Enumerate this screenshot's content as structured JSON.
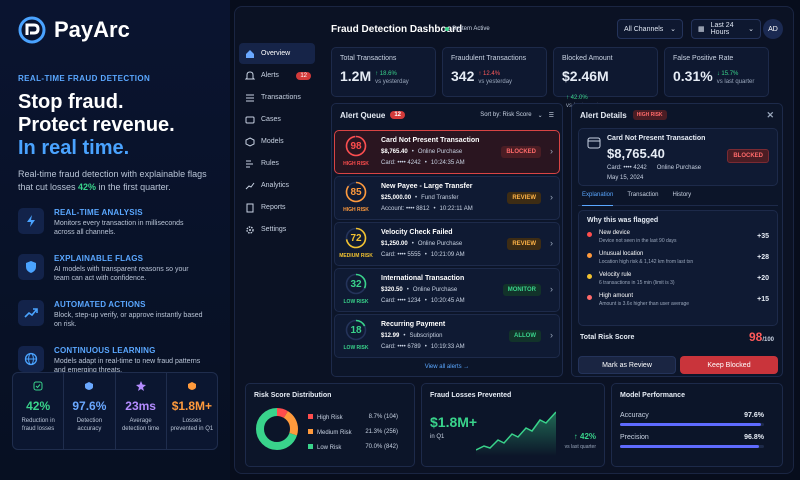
{
  "brand": {
    "name": "PayArc"
  },
  "hero": {
    "eyebrow": "REAL-TIME FRAUD DETECTION",
    "line1": "Stop fraud.",
    "line2": "Protect revenue.",
    "line3": "In real time.",
    "sub_pre": "Real-time fraud detection with explainable flags that cut losses ",
    "sub_pct": "42%",
    "sub_post": " in the first quarter."
  },
  "features": [
    {
      "title": "REAL-TIME ANALYSIS",
      "desc": "Monitors every transaction in milliseconds across all channels.",
      "icon": "bolt-icon"
    },
    {
      "title": "EXPLAINABLE FLAGS",
      "desc": "AI models with transparent reasons so your team can act with confidence.",
      "icon": "shield-icon"
    },
    {
      "title": "AUTOMATED ACTIONS",
      "desc": "Block, step-up verify, or approve instantly based on risk.",
      "icon": "trend-icon"
    },
    {
      "title": "CONTINUOUS LEARNING",
      "desc": "Models adapt in real-time to new fraud patterns and emerging threats.",
      "icon": "globe-icon"
    }
  ],
  "stats": [
    {
      "value": "42%",
      "label": "Reduction in fraud losses",
      "color": "#39d38b"
    },
    {
      "value": "97.6%",
      "label": "Detection accuracy",
      "color": "#6aa8ff"
    },
    {
      "value": "23ms",
      "label": "Average detection time",
      "color": "#b48cff"
    },
    {
      "value": "$1.8M+",
      "label": "Losses prevented in Q1",
      "color": "#ff9a3c"
    }
  ],
  "nav": [
    {
      "label": "Overview",
      "icon": "home-icon",
      "active": true
    },
    {
      "label": "Alerts",
      "icon": "bell-icon",
      "badge": "12"
    },
    {
      "label": "Transactions",
      "icon": "list-icon"
    },
    {
      "label": "Cases",
      "icon": "folder-icon"
    },
    {
      "label": "Models",
      "icon": "cube-icon"
    },
    {
      "label": "Rules",
      "icon": "rules-icon"
    },
    {
      "label": "Analytics",
      "icon": "chart-icon"
    },
    {
      "label": "Reports",
      "icon": "doc-icon"
    },
    {
      "label": "Settings",
      "icon": "gear-icon"
    }
  ],
  "header": {
    "title": "Fraud Detection Dashboard",
    "status": "System Active",
    "channels": "All Channels",
    "range": "Last 24 Hours",
    "avatar": "AD"
  },
  "kpis": [
    {
      "label": "Total Transactions",
      "value": "1.2M",
      "delta": "↑ 18.6%",
      "dir": "up",
      "vs": "vs yesterday"
    },
    {
      "label": "Fraudulent Transactions",
      "value": "342",
      "delta": "↑ 12.4%",
      "dir": "down",
      "vs": "vs yesterday"
    },
    {
      "label": "Blocked Amount",
      "value": "$2.46M",
      "delta": "↑ 42.0%",
      "dir": "up",
      "vs": "vs last quarter"
    },
    {
      "label": "False Positive Rate",
      "value": "0.31%",
      "delta": "↓ 15.7%",
      "dir": "up",
      "vs": "vs last quarter"
    }
  ],
  "queue": {
    "title": "Alert Queue",
    "count": "12",
    "sort": "Sort by: Risk Score",
    "view_all": "View all alerts →",
    "items": [
      {
        "score": "98",
        "risk": "HIGH RISK",
        "color": "#ff4d4d",
        "title": "Card Not Present Transaction",
        "amount": "$8,765.40",
        "channel": "Online Purchase",
        "ref": "Card: •••• 4242",
        "time": "10:24:35 AM",
        "tag": "BLOCKED",
        "tag_fg": "#ff6a6a",
        "tag_bg": "#4a1d24"
      },
      {
        "score": "85",
        "risk": "HIGH RISK",
        "color": "#ff9a3c",
        "title": "New Payee - Large Transfer",
        "amount": "$25,000.00",
        "channel": "Fund Transfer",
        "ref": "Account: •••• 8812",
        "time": "10:22:11 AM",
        "tag": "REVIEW",
        "tag_fg": "#ffb347",
        "tag_bg": "#3d2c14"
      },
      {
        "score": "72",
        "risk": "MEDIUM RISK",
        "color": "#f2c230",
        "title": "Velocity Check Failed",
        "amount": "$1,250.00",
        "channel": "Online Purchase",
        "ref": "Card: •••• 5555",
        "time": "10:21:09 AM",
        "tag": "REVIEW",
        "tag_fg": "#ffb347",
        "tag_bg": "#3d2c14"
      },
      {
        "score": "32",
        "risk": "LOW RISK",
        "color": "#39d38b",
        "title": "International Transaction",
        "amount": "$320.50",
        "channel": "Online Purchase",
        "ref": "Card: •••• 1234",
        "time": "10:20:45 AM",
        "tag": "MONITOR",
        "tag_fg": "#39d38b",
        "tag_bg": "#12332a"
      },
      {
        "score": "18",
        "risk": "LOW RISK",
        "color": "#39d38b",
        "title": "Recurring Payment",
        "amount": "$12.99",
        "channel": "Subscription",
        "ref": "Card: •••• 6789",
        "time": "10:19:33 AM",
        "tag": "ALLOW",
        "tag_fg": "#39d38b",
        "tag_bg": "#12332a"
      }
    ]
  },
  "details": {
    "title": "Alert Details",
    "risk": "HIGH RISK",
    "tx_title": "Card Not Present Transaction",
    "amount": "$8,765.40",
    "card": "Card: •••• 4242",
    "channel": "Online Purchase",
    "date": "May 15, 2024",
    "status": "BLOCKED",
    "tabs": [
      "Explanation",
      "Transaction",
      "History"
    ],
    "why_title": "Why this was flagged",
    "reasons": [
      {
        "title": "New device",
        "desc": "Device not seen in the last 90 days",
        "points": "+35",
        "color": "#ff4d4d"
      },
      {
        "title": "Unusual location",
        "desc": "Location high risk & 1,142 km from last txn",
        "points": "+28",
        "color": "#ff9a3c"
      },
      {
        "title": "Velocity rule",
        "desc": "6 transactions in 15 min (limit is 3)",
        "points": "+20",
        "color": "#f2c230"
      },
      {
        "title": "High amount",
        "desc": "Amount is 3.6x higher than user average",
        "points": "+15",
        "color": "#ff6a6a"
      }
    ],
    "total_label": "Total Risk Score",
    "total": "98",
    "total_of": "/100",
    "review_btn": "Mark as Review",
    "block_btn": "Keep Blocked"
  },
  "distribution": {
    "title": "Risk Score Distribution",
    "rows": [
      {
        "label": "High Risk",
        "value": "8.7% (104)",
        "pct": 8.7,
        "color": "#ff4d4d"
      },
      {
        "label": "Medium Risk",
        "value": "21.3% (256)",
        "pct": 21.3,
        "color": "#ff9a3c"
      },
      {
        "label": "Low Risk",
        "value": "70.0% (842)",
        "pct": 70.0,
        "color": "#39d38b"
      }
    ]
  },
  "losses": {
    "title": "Fraud Losses Prevented",
    "value": "$1.8M+",
    "period": "in Q1",
    "delta": "↑ 42%",
    "vs": "vs last quarter"
  },
  "performance": {
    "title": "Model Performance",
    "rows": [
      {
        "label": "Accuracy",
        "value": "97.6%",
        "pct": 97.6
      },
      {
        "label": "Precision",
        "value": "96.8%",
        "pct": 96.8
      }
    ]
  }
}
